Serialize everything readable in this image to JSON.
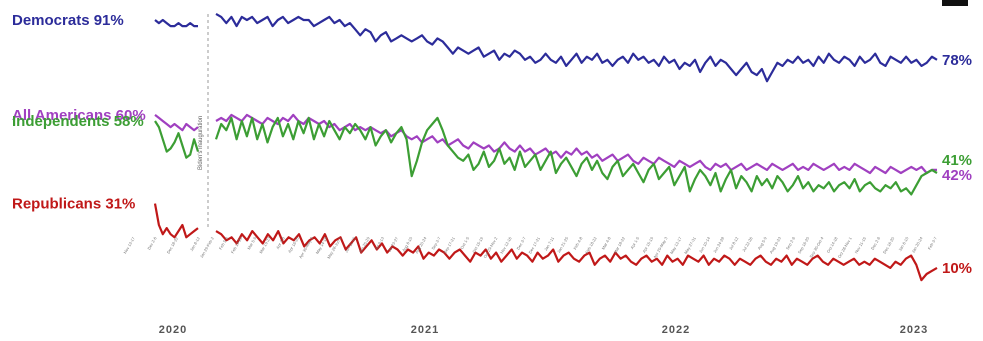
{
  "chart_data": {
    "type": "line",
    "title": "",
    "xlabel": "",
    "ylabel": "",
    "ylim": [
      0,
      100
    ],
    "grid": false,
    "legend": "labels at line starts",
    "year_labels": [
      "2020",
      "2021",
      "2022",
      "2023"
    ],
    "divider_note": "Biden's inauguration",
    "tick_labels": [
      "Nov 13-17",
      "Dec 2-6",
      "Dec 18-22",
      "Jan 8-12",
      "Jan 29-Feb 2",
      "Feb 5-9",
      "Feb 19-23",
      "Mar 5-9",
      "Mar 19-23",
      "Apr 2-6",
      "Apr 16-20",
      "Apr 30-May 4",
      "May 14-18",
      "May 28-Jun 1",
      "Jun 11-15",
      "Jun 25-29",
      "Jul 9-13",
      "Jul 23-27",
      "Aug 6-10",
      "Aug 20-24",
      "Sep 3-7",
      "Sep 17-21",
      "Oct 1-5",
      "Oct 15-19",
      "Oct 29-Nov 2",
      "Nov 12-16",
      "Dec 3-7",
      "Dec 17-21",
      "Jan 7-11",
      "Jan 21-25",
      "Feb 4-8",
      "Feb 18-22",
      "Mar 4-8",
      "Mar 18-22",
      "Apr 1-5",
      "Apr 15-19",
      "Apr 29-May 3",
      "May 13-17",
      "May 27-31",
      "Jun 10-14",
      "Jun 24-28",
      "Jul 8-12",
      "Jul 22-26",
      "Aug 5-9",
      "Aug 19-23",
      "Sep 2-6",
      "Sep 16-20",
      "Sep 30-Oct 4",
      "Oct 14-18",
      "Oct 28-Nov 1",
      "Nov 11-15",
      "Dec 2-6",
      "Dec 16-20",
      "Jan 6-10",
      "Jan 20-24",
      "Feb 3-7"
    ],
    "pre_count": 12,
    "series": [
      {
        "name": "Democrats",
        "color": "#2c2c9a",
        "start_label": "91%",
        "end_label": "78%",
        "values": [
          91,
          90,
          91,
          90,
          89,
          89,
          90,
          89,
          89,
          90,
          89,
          89,
          93,
          92,
          90,
          92,
          89,
          92,
          91,
          92,
          90,
          91,
          92,
          89,
          91,
          92,
          90,
          91,
          92,
          91,
          91,
          89,
          90,
          91,
          92,
          90,
          91,
          89,
          90,
          88,
          86,
          88,
          87,
          84,
          86,
          87,
          84,
          85,
          86,
          85,
          84,
          85,
          86,
          84,
          83,
          85,
          84,
          82,
          80,
          82,
          81,
          80,
          81,
          82,
          79,
          80,
          81,
          78,
          80,
          79,
          81,
          80,
          78,
          79,
          77,
          78,
          80,
          78,
          77,
          79,
          76,
          78,
          80,
          77,
          79,
          78,
          80,
          77,
          78,
          76,
          78,
          79,
          77,
          80,
          78,
          79,
          77,
          78,
          76,
          79,
          77,
          78,
          75,
          77,
          76,
          78,
          74,
          77,
          79,
          76,
          78,
          77,
          75,
          73,
          75,
          77,
          74,
          73,
          75,
          71,
          74,
          77,
          76,
          78,
          77,
          79,
          77,
          78,
          76,
          79,
          77,
          80,
          78,
          77,
          79,
          78,
          76,
          79,
          77,
          78,
          80,
          77,
          76,
          79,
          78,
          77,
          79,
          77,
          78,
          76,
          77,
          79,
          78
        ]
      },
      {
        "name": "All Americans",
        "color": "#a040c0",
        "start_label": "60%",
        "end_label": "42%",
        "values": [
          60,
          59,
          58,
          57,
          56,
          57,
          56,
          55,
          57,
          56,
          55,
          56,
          58,
          59,
          58,
          60,
          59,
          58,
          60,
          59,
          58,
          57,
          59,
          58,
          57,
          59,
          58,
          60,
          58,
          57,
          59,
          58,
          57,
          58,
          56,
          57,
          55,
          56,
          57,
          55,
          56,
          55,
          56,
          55,
          54,
          55,
          53,
          54,
          55,
          53,
          52,
          53,
          51,
          52,
          53,
          51,
          52,
          50,
          51,
          52,
          50,
          49,
          51,
          50,
          49,
          50,
          48,
          49,
          51,
          49,
          48,
          50,
          48,
          49,
          47,
          48,
          49,
          47,
          48,
          46,
          48,
          47,
          49,
          47,
          48,
          46,
          47,
          45,
          46,
          47,
          45,
          46,
          47,
          45,
          44,
          46,
          45,
          44,
          46,
          45,
          44,
          43,
          45,
          44,
          43,
          44,
          45,
          43,
          42,
          44,
          43,
          44,
          42,
          43,
          44,
          42,
          43,
          44,
          43,
          42,
          44,
          43,
          42,
          43,
          44,
          42,
          43,
          42,
          44,
          43,
          42,
          43,
          44,
          42,
          43,
          42,
          44,
          43,
          42,
          41,
          43,
          42,
          41,
          43,
          42,
          41,
          42,
          43,
          42,
          43,
          41,
          42,
          42
        ]
      },
      {
        "name": "Independents",
        "color": "#3c9e34",
        "start_label": "58%",
        "end_label": "41%",
        "values": [
          58,
          56,
          52,
          48,
          49,
          51,
          54,
          50,
          46,
          47,
          52,
          48,
          52,
          57,
          55,
          59,
          52,
          58,
          53,
          59,
          52,
          57,
          51,
          56,
          59,
          53,
          57,
          52,
          58,
          54,
          59,
          52,
          57,
          53,
          58,
          55,
          52,
          56,
          54,
          57,
          55,
          52,
          56,
          50,
          53,
          55,
          51,
          54,
          56,
          52,
          40,
          45,
          51,
          55,
          57,
          59,
          55,
          50,
          48,
          46,
          45,
          47,
          42,
          44,
          48,
          43,
          45,
          49,
          44,
          46,
          42,
          48,
          43,
          45,
          47,
          42,
          45,
          48,
          41,
          44,
          46,
          43,
          40,
          44,
          46,
          42,
          45,
          41,
          39,
          43,
          45,
          40,
          42,
          44,
          41,
          38,
          42,
          44,
          39,
          41,
          43,
          37,
          40,
          43,
          35,
          39,
          42,
          40,
          37,
          41,
          35,
          39,
          42,
          36,
          40,
          38,
          35,
          40,
          37,
          39,
          36,
          40,
          38,
          35,
          37,
          40,
          36,
          38,
          35,
          37,
          36,
          38,
          35,
          37,
          38,
          36,
          39,
          35,
          37,
          38,
          36,
          35,
          37,
          36,
          38,
          35,
          36,
          34,
          37,
          40,
          41,
          42,
          41
        ]
      },
      {
        "name": "Republicans",
        "color": "#c01818",
        "start_label": "31%",
        "end_label": "10%",
        "values": [
          31,
          24,
          21,
          23,
          21,
          20,
          22,
          24,
          20,
          21,
          22,
          23,
          22,
          21,
          19,
          20,
          18,
          21,
          19,
          22,
          20,
          18,
          21,
          19,
          22,
          18,
          20,
          19,
          21,
          17,
          19,
          20,
          18,
          21,
          17,
          19,
          20,
          16,
          18,
          20,
          15,
          17,
          19,
          16,
          18,
          15,
          17,
          16,
          14,
          16,
          15,
          17,
          13,
          15,
          14,
          16,
          15,
          13,
          15,
          16,
          14,
          12,
          15,
          14,
          16,
          13,
          15,
          12,
          14,
          16,
          13,
          15,
          14,
          12,
          15,
          13,
          14,
          16,
          12,
          14,
          15,
          13,
          12,
          14,
          15,
          11,
          13,
          14,
          12,
          15,
          13,
          14,
          12,
          11,
          13,
          14,
          12,
          13,
          11,
          14,
          12,
          13,
          11,
          14,
          13,
          12,
          14,
          11,
          13,
          12,
          14,
          13,
          11,
          13,
          12,
          11,
          13,
          14,
          12,
          11,
          13,
          12,
          14,
          11,
          13,
          12,
          11,
          13,
          14,
          12,
          11,
          13,
          12,
          11,
          12,
          13,
          11,
          12,
          11,
          13,
          12,
          11,
          10,
          12,
          11,
          13,
          14,
          11,
          6,
          8,
          9,
          10
        ]
      }
    ]
  }
}
